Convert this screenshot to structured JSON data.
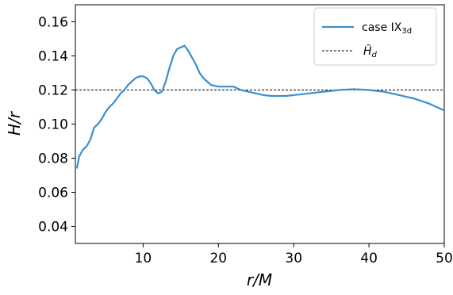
{
  "chart_data": {
    "type": "line",
    "xlabel": "r/M",
    "ylabel": "H/r",
    "xlim": [
      1,
      50
    ],
    "ylim": [
      0.03,
      0.17
    ],
    "xticks": [
      10,
      20,
      30,
      40,
      50
    ],
    "yticks": [
      0.04,
      0.06,
      0.08,
      0.1,
      0.12,
      0.14,
      0.16
    ],
    "xtick_labels": [
      "10",
      "20",
      "30",
      "40",
      "50"
    ],
    "ytick_labels": [
      "0.04",
      "0.06",
      "0.08",
      "0.10",
      "0.12",
      "0.14",
      "0.16"
    ],
    "grid": false,
    "legend_position": "top-right",
    "series": [
      {
        "name": "case IX",
        "name_subscript": "3d",
        "color": "#3a8fcf",
        "style": "solid",
        "x": [
          1.2,
          1.5,
          2,
          2.5,
          3,
          3.5,
          4,
          4.5,
          5,
          5.5,
          6,
          6.5,
          7,
          7.5,
          8,
          8.5,
          9,
          9.5,
          10,
          10.5,
          11,
          11.5,
          12,
          12.5,
          13,
          13.5,
          14,
          14.5,
          15,
          15.5,
          16,
          16.5,
          17,
          17.5,
          18,
          18.5,
          19,
          20,
          21,
          22,
          23,
          24,
          25,
          26,
          27,
          28,
          29,
          30,
          32,
          34,
          36,
          38,
          40,
          42,
          44,
          46,
          48,
          49,
          50
        ],
        "y": [
          0.074,
          0.081,
          0.085,
          0.087,
          0.091,
          0.098,
          0.1,
          0.103,
          0.107,
          0.11,
          0.112,
          0.115,
          0.118,
          0.12,
          0.123,
          0.125,
          0.127,
          0.128,
          0.128,
          0.127,
          0.124,
          0.12,
          0.118,
          0.119,
          0.125,
          0.133,
          0.14,
          0.144,
          0.145,
          0.146,
          0.143,
          0.139,
          0.135,
          0.13,
          0.127,
          0.125,
          0.123,
          0.122,
          0.122,
          0.122,
          0.12,
          0.119,
          0.118,
          0.117,
          0.1165,
          0.1165,
          0.1165,
          0.117,
          0.118,
          0.119,
          0.12,
          0.1205,
          0.12,
          0.119,
          0.117,
          0.115,
          0.112,
          0.11,
          0.108
        ]
      },
      {
        "name": "H̃",
        "name_subscript": "d",
        "color": "#000000",
        "style": "dashed",
        "constant": 0.12
      }
    ]
  }
}
